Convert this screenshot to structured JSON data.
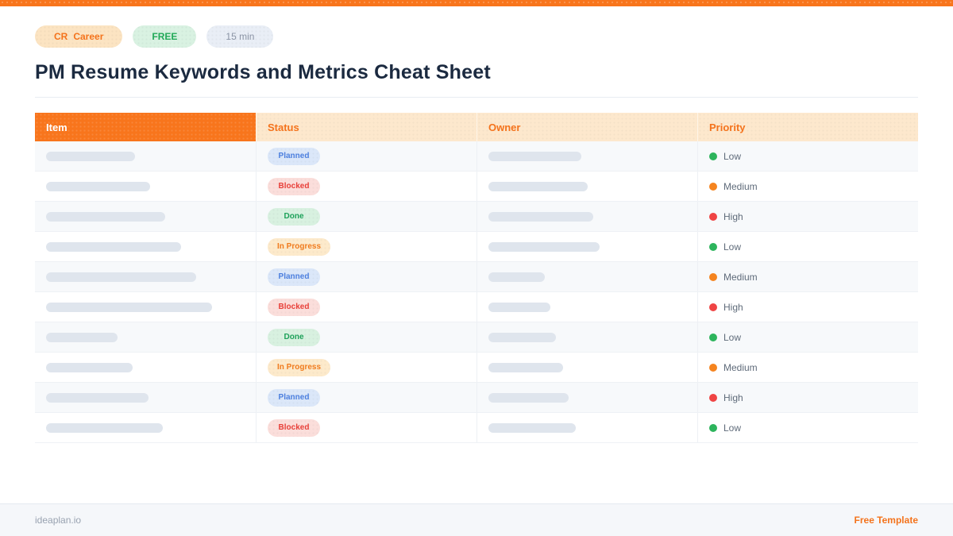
{
  "header": {
    "brand_badge": {
      "prefix": "CR",
      "label": "Career"
    },
    "free_badge": "FREE",
    "duration_badge": "15 min",
    "title": "PM Resume Keywords and Metrics Cheat Sheet"
  },
  "table": {
    "columns": [
      "Item",
      "Status",
      "Owner",
      "Priority"
    ],
    "rows": [
      {
        "item_bar_width": 112,
        "status": "Planned",
        "status_key": "planned",
        "owner_bar_width": 117,
        "priority": "Low",
        "priority_key": "low"
      },
      {
        "item_bar_width": 131,
        "status": "Blocked",
        "status_key": "blocked",
        "owner_bar_width": 125,
        "priority": "Medium",
        "priority_key": "medium"
      },
      {
        "item_bar_width": 150,
        "status": "Done",
        "status_key": "done",
        "owner_bar_width": 132,
        "priority": "High",
        "priority_key": "high"
      },
      {
        "item_bar_width": 170,
        "status": "In Progress",
        "status_key": "inprogress",
        "owner_bar_width": 140,
        "priority": "Low",
        "priority_key": "low"
      },
      {
        "item_bar_width": 189,
        "status": "Planned",
        "status_key": "planned",
        "owner_bar_width": 71,
        "priority": "Medium",
        "priority_key": "medium"
      },
      {
        "item_bar_width": 209,
        "status": "Blocked",
        "status_key": "blocked",
        "owner_bar_width": 78,
        "priority": "High",
        "priority_key": "high"
      },
      {
        "item_bar_width": 90,
        "status": "Done",
        "status_key": "done",
        "owner_bar_width": 85,
        "priority": "Low",
        "priority_key": "low"
      },
      {
        "item_bar_width": 109,
        "status": "In Progress",
        "status_key": "inprogress",
        "owner_bar_width": 94,
        "priority": "Medium",
        "priority_key": "medium"
      },
      {
        "item_bar_width": 129,
        "status": "Planned",
        "status_key": "planned",
        "owner_bar_width": 101,
        "priority": "High",
        "priority_key": "high"
      },
      {
        "item_bar_width": 147,
        "status": "Blocked",
        "status_key": "blocked",
        "owner_bar_width": 110,
        "priority": "Low",
        "priority_key": "low"
      }
    ]
  },
  "footer": {
    "site": "ideaplan.io",
    "note": "Free Template"
  },
  "colors": {
    "accent": "#F8751C",
    "header_light_bg": "#FDE8CD",
    "title_text": "#1B2A40",
    "placeholder_bar": "#DFE5ED",
    "status": {
      "planned": {
        "bg": "#DBE7F9",
        "text": "#4C7FDE"
      },
      "blocked": {
        "bg": "#FBDEDB",
        "text": "#E8403A"
      },
      "done": {
        "bg": "#D8F1E0",
        "text": "#1EA15A"
      },
      "inprogress": {
        "bg": "#FDEACB",
        "text": "#F07B1E"
      }
    },
    "priority_dots": {
      "low": "#2DB45C",
      "medium": "#F5841F",
      "high": "#EF4444"
    }
  }
}
